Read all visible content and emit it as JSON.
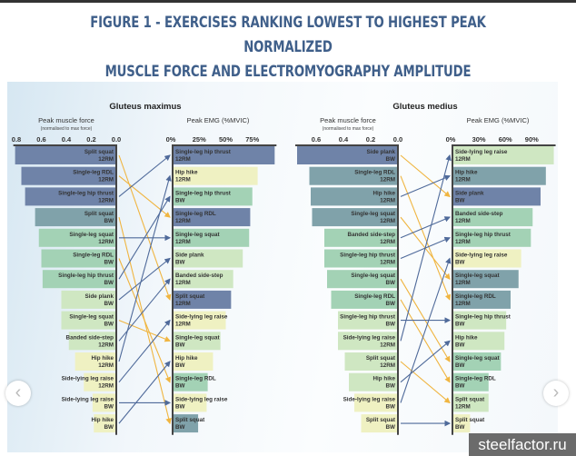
{
  "title_line1": "FIGURE 1 - EXERCISES RANKING LOWEST TO HIGHEST PEAK NORMALIZED",
  "title_line2": "MUSCLE FORCE AND ELECTROMYOGRAPHY AMPLITUDE",
  "watermark": "steelfactor.ru",
  "nav": {
    "prev": "‹",
    "next": "›"
  },
  "colors": {
    "c1": "#6f83a8",
    "c2": "#80a2aa",
    "c3": "#a3d2b5",
    "c4": "#cfe7c2",
    "c5": "#eff1c2",
    "up": "#4f6a9a",
    "down": "#f0b540",
    "axis": "#444"
  },
  "chart_data": [
    {
      "type": "bar",
      "title": "Gluteus maximus",
      "force_label": "Peak muscle force",
      "force_sublabel": "(normalised to max force)",
      "emg_label": "Peak EMG (%MVIC)",
      "force_ticks": [
        "0.8",
        "0.6",
        "0.4",
        "0.2",
        "0.0"
      ],
      "force_tick_values": [
        0.8,
        0.6,
        0.4,
        0.2,
        0
      ],
      "emg_ticks": [
        "0%",
        "25%",
        "50%",
        "75%"
      ],
      "emg_tick_values": [
        0,
        25,
        50,
        75
      ],
      "force": [
        {
          "name": "Split squat",
          "load": "12RM",
          "value": 0.81
        },
        {
          "name": "Single-leg RDL",
          "load": "12RM",
          "value": 0.76
        },
        {
          "name": "Single-leg hip thrust",
          "load": "12RM",
          "value": 0.73
        },
        {
          "name": "Split squat",
          "load": "BW",
          "value": 0.65
        },
        {
          "name": "Single-leg squat",
          "load": "12RM",
          "value": 0.62
        },
        {
          "name": "Single-leg RDL",
          "load": "BW",
          "value": 0.6
        },
        {
          "name": "Single-leg hip thrust",
          "load": "BW",
          "value": 0.59
        },
        {
          "name": "Side plank",
          "load": "BW",
          "value": 0.44
        },
        {
          "name": "Single-leg squat",
          "load": "BW",
          "value": 0.44
        },
        {
          "name": "Banded side-step",
          "load": "12RM",
          "value": 0.38
        },
        {
          "name": "Hip hike",
          "load": "12RM",
          "value": 0.33
        },
        {
          "name": "Side-lying leg raise",
          "load": "12RM",
          "value": 0.26
        },
        {
          "name": "Side-lying leg raise",
          "load": "BW",
          "value": 0.19
        },
        {
          "name": "Hip hike",
          "load": "BW",
          "value": 0.18
        }
      ],
      "emg": [
        {
          "name": "Single-leg hip thrust",
          "load": "12RM",
          "value": 96
        },
        {
          "name": "Hip hike",
          "load": "12RM",
          "value": 80
        },
        {
          "name": "Single-leg hip thrust",
          "load": "BW",
          "value": 75
        },
        {
          "name": "Single-leg RDL",
          "load": "12RM",
          "value": 73
        },
        {
          "name": "Single-leg squat",
          "load": "12RM",
          "value": 72
        },
        {
          "name": "Side plank",
          "load": "BW",
          "value": 66
        },
        {
          "name": "Banded side-step",
          "load": "12RM",
          "value": 57
        },
        {
          "name": "Split squat",
          "load": "12RM",
          "value": 55
        },
        {
          "name": "Side-lying leg raise",
          "load": "12RM",
          "value": 50
        },
        {
          "name": "Single-leg squat",
          "load": "BW",
          "value": 45
        },
        {
          "name": "Hip hike",
          "load": "BW",
          "value": 38
        },
        {
          "name": "Single-leg RDL",
          "load": "BW",
          "value": 33
        },
        {
          "name": "Side-lying leg raise",
          "load": "BW",
          "value": 32
        },
        {
          "name": "Split squat",
          "load": "BW",
          "value": 24
        }
      ]
    },
    {
      "type": "bar",
      "title": "Gluteus medius",
      "force_label": "Peak muscle force",
      "force_sublabel": "(normalised to max force)",
      "emg_label": "Peak EMG (%MVIC)",
      "force_ticks": [
        "0.6",
        "0.4",
        "0.2",
        "0.0"
      ],
      "force_tick_values": [
        0.6,
        0.4,
        0.2,
        0
      ],
      "emg_ticks": [
        "0%",
        "30%",
        "60%",
        "90%"
      ],
      "emg_tick_values": [
        0,
        30,
        60,
        90
      ],
      "force": [
        {
          "name": "Side plank",
          "load": "BW",
          "value": 0.74
        },
        {
          "name": "Single-leg RDL",
          "load": "12RM",
          "value": 0.65
        },
        {
          "name": "Hip hike",
          "load": "12RM",
          "value": 0.64
        },
        {
          "name": "Single-leg squat",
          "load": "12RM",
          "value": 0.63
        },
        {
          "name": "Banded side-step",
          "load": "12RM",
          "value": 0.54
        },
        {
          "name": "Single-leg hip thrust",
          "load": "12RM",
          "value": 0.54
        },
        {
          "name": "Single-leg squat",
          "load": "BW",
          "value": 0.52
        },
        {
          "name": "Single-leg RDL",
          "load": "BW",
          "value": 0.49
        },
        {
          "name": "Single-leg hip thrust",
          "load": "BW",
          "value": 0.44
        },
        {
          "name": "Side-lying leg raise",
          "load": "12RM",
          "value": 0.44
        },
        {
          "name": "Split squat",
          "load": "12RM",
          "value": 0.39
        },
        {
          "name": "Hip hike",
          "load": "BW",
          "value": 0.36
        },
        {
          "name": "Side-lying leg raise",
          "load": "BW",
          "value": 0.32
        },
        {
          "name": "Split squat",
          "load": "BW",
          "value": 0.27
        }
      ],
      "emg": [
        {
          "name": "Side-lying leg raise",
          "load": "12RM",
          "value": 115
        },
        {
          "name": "Hip hike",
          "load": "12RM",
          "value": 106
        },
        {
          "name": "Side plank",
          "load": "BW",
          "value": 100
        },
        {
          "name": "Banded side-step",
          "load": "12RM",
          "value": 91
        },
        {
          "name": "Single-leg hip thrust",
          "load": "12RM",
          "value": 89
        },
        {
          "name": "Side-lying leg raise",
          "load": "BW",
          "value": 78
        },
        {
          "name": "Single-leg squat",
          "load": "12RM",
          "value": 75
        },
        {
          "name": "Single-leg RDL",
          "load": "12RM",
          "value": 66
        },
        {
          "name": "Single-leg hip thrust",
          "load": "BW",
          "value": 61
        },
        {
          "name": "Hip hike",
          "load": "BW",
          "value": 59
        },
        {
          "name": "Single-leg squat",
          "load": "BW",
          "value": 55
        },
        {
          "name": "Single-leg RDL",
          "load": "BW",
          "value": 41
        },
        {
          "name": "Split squat",
          "load": "12RM",
          "value": 41
        },
        {
          "name": "Split squat",
          "load": "BW",
          "value": 20
        }
      ]
    }
  ]
}
